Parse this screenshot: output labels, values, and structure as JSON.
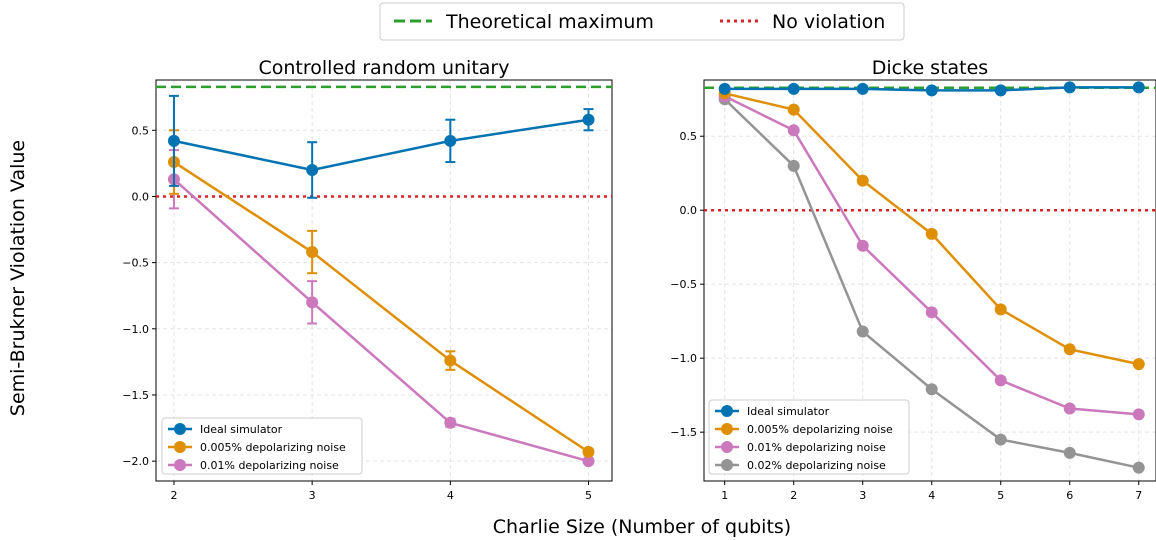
{
  "figure": {
    "xlabel": "Charlie Size (Number of qubits)",
    "ylabel": "Semi-Brukner Violation Value",
    "legend": [
      {
        "label": "Theoretical maximum",
        "color": "#2ca02c",
        "style": "dashed"
      },
      {
        "label": "No violation",
        "color": "#d62728",
        "style": "dotted"
      }
    ]
  },
  "chart_data": [
    {
      "type": "line",
      "title": "Controlled random unitary",
      "x": [
        2,
        3,
        4,
        5
      ],
      "xlim": [
        1.87,
        5.17
      ],
      "ylim": [
        -2.15,
        0.88
      ],
      "xticks": [
        2,
        3,
        4,
        5
      ],
      "yticks": [
        0.5,
        0.0,
        -0.5,
        -1.0,
        -1.5,
        -2.0
      ],
      "ytick_labels": [
        "0.5",
        "0.0",
        "−0.5",
        "−1.0",
        "−1.5",
        "−2.0"
      ],
      "grid": true,
      "legend_position": "lower-left",
      "hlines": {
        "theoretical_maximum": 0.828,
        "no_violation": 0.0
      },
      "series": [
        {
          "name": "Ideal simulator",
          "color": "#0173b2",
          "values": [
            0.42,
            0.2,
            0.42,
            0.58
          ],
          "errors": [
            0.34,
            0.21,
            0.16,
            0.08
          ]
        },
        {
          "name": "0.005% depolarizing noise",
          "color": "#de8f05",
          "values": [
            0.26,
            -0.42,
            -1.24,
            -1.93
          ],
          "errors": [
            0.24,
            0.16,
            0.07,
            0.02
          ]
        },
        {
          "name": "0.01% depolarizing noise",
          "color": "#cc78bc",
          "values": [
            0.13,
            -0.8,
            -1.71,
            -2.0
          ],
          "errors": [
            0.22,
            0.16,
            0.03,
            0.01
          ]
        }
      ]
    },
    {
      "type": "line",
      "title": "Dicke states",
      "x": [
        1,
        2,
        3,
        4,
        5,
        6,
        7
      ],
      "xlim": [
        0.7,
        7.25
      ],
      "ylim": [
        -1.83,
        0.88
      ],
      "xticks": [
        1,
        2,
        3,
        4,
        5,
        6,
        7
      ],
      "yticks": [
        0.5,
        0.0,
        -0.5,
        -1.0,
        -1.5
      ],
      "ytick_labels": [
        "0.5",
        "0.0",
        "−0.5",
        "−1.0",
        "−1.5"
      ],
      "grid": true,
      "legend_position": "lower-left",
      "hlines": {
        "theoretical_maximum": 0.828,
        "no_violation": 0.0
      },
      "series": [
        {
          "name": "Ideal simulator",
          "color": "#0173b2",
          "values": [
            0.82,
            0.82,
            0.82,
            0.81,
            0.81,
            0.83,
            0.83
          ]
        },
        {
          "name": "0.005% depolarizing noise",
          "color": "#de8f05",
          "values": [
            0.79,
            0.68,
            0.2,
            -0.16,
            -0.67,
            -0.94,
            -1.04
          ]
        },
        {
          "name": "0.01% depolarizing noise",
          "color": "#cc78bc",
          "values": [
            0.77,
            0.54,
            -0.24,
            -0.69,
            -1.15,
            -1.34,
            -1.38
          ]
        },
        {
          "name": "0.02% depolarizing noise",
          "color": "#949494",
          "values": [
            0.75,
            0.3,
            -0.82,
            -1.21,
            -1.55,
            -1.64,
            -1.74
          ]
        }
      ]
    }
  ]
}
